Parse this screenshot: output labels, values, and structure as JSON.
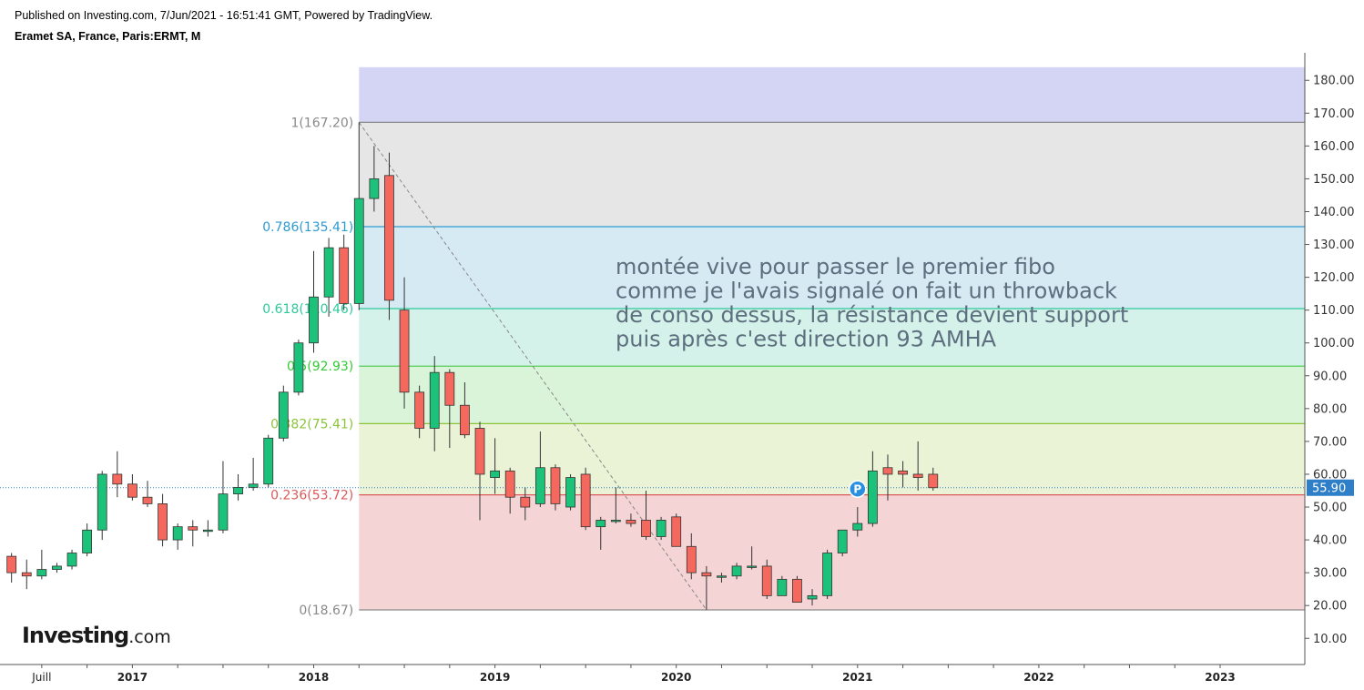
{
  "header": {
    "line1": "Published on Investing.com, 7/Jun/2021 - 16:51:41 GMT, Powered by TradingView.",
    "line2": "Eramet SA, France, Paris:ERMT, M"
  },
  "logo": {
    "brand": "Investing",
    "suffix": ".com"
  },
  "chart_data": {
    "type": "candlestick",
    "title": "Eramet SA, France, Paris:ERMT, M",
    "ylim": [
      2,
      190
    ],
    "y_ticks": [
      "10.00",
      "20.00",
      "30.00",
      "40.00",
      "50.00",
      "60.00",
      "70.00",
      "80.00",
      "90.00",
      "100.00",
      "110.00",
      "120.00",
      "130.00",
      "140.00",
      "150.00",
      "160.00",
      "170.00",
      "180.00"
    ],
    "x_labels": [
      {
        "label": "Juill",
        "date": "2016-07"
      },
      {
        "label": "2017",
        "date": "2017-01"
      },
      {
        "label": "2018",
        "date": "2018-01"
      },
      {
        "label": "2019",
        "date": "2019-01"
      },
      {
        "label": "2020",
        "date": "2020-01"
      },
      {
        "label": "2021",
        "date": "2021-01"
      },
      {
        "label": "2022",
        "date": "2022-01"
      },
      {
        "label": "2023",
        "date": "2023-01"
      }
    ],
    "last_price": "55.90",
    "fib_levels": [
      {
        "label": "1(167.20)",
        "value": 167.2,
        "text_color": "#8a8a8a",
        "line_color": "#8a8a8a"
      },
      {
        "label": "0.786(135.41)",
        "value": 135.41,
        "text_color": "#2d9ad0",
        "line_color": "#2d9ad0"
      },
      {
        "label": "0.618(110.46)",
        "value": 110.46,
        "text_color": "#2ec99a",
        "line_color": "#2ec99a"
      },
      {
        "label": "0.5(92.93)",
        "value": 92.93,
        "text_color": "#33cc33",
        "line_color": "#55cc55"
      },
      {
        "label": "0.382(75.41)",
        "value": 75.41,
        "text_color": "#8cc43a",
        "line_color": "#8cc43a"
      },
      {
        "label": "0.236(53.72)",
        "value": 53.72,
        "text_color": "#dc5a5a",
        "line_color": "#dc5a5a"
      },
      {
        "label": "0(18.67)",
        "value": 18.67,
        "text_color": "#8a8a8a",
        "line_color": "#8a8a8a"
      }
    ],
    "fib_zones": [
      {
        "from": 167.2,
        "to": 184,
        "color": "#d4d4f4"
      },
      {
        "from": 135.41,
        "to": 167.2,
        "color": "#e6e6e6"
      },
      {
        "from": 110.46,
        "to": 135.41,
        "color": "#d6eaf4"
      },
      {
        "from": 92.93,
        "to": 110.46,
        "color": "#d4f2ea"
      },
      {
        "from": 75.41,
        "to": 92.93,
        "color": "#d9f4d8"
      },
      {
        "from": 53.72,
        "to": 75.41,
        "color": "#eaf3d6"
      },
      {
        "from": 18.67,
        "to": 53.72,
        "color": "#f4d4d4"
      }
    ],
    "trend_line": {
      "from": {
        "date": "2018-04",
        "price": 167.2
      },
      "to": {
        "date": "2020-03",
        "price": 18.67
      }
    },
    "annotation": [
      "montée vive pour passer le premier fibo",
      "comme je l'avais signalé on fait un throwback",
      "de conso dessus, la résistance devient support",
      "puis après c'est direction 93 AMHA"
    ],
    "marker": {
      "label": "P",
      "date": "2021-01",
      "price": 55.5
    },
    "candles": [
      {
        "date": "2016-05",
        "o": 35,
        "h": 36,
        "l": 27,
        "c": 30
      },
      {
        "date": "2016-06",
        "o": 30,
        "h": 34,
        "l": 25,
        "c": 29
      },
      {
        "date": "2016-07",
        "o": 29,
        "h": 37,
        "l": 28,
        "c": 31
      },
      {
        "date": "2016-08",
        "o": 31,
        "h": 33,
        "l": 30,
        "c": 32
      },
      {
        "date": "2016-09",
        "o": 32,
        "h": 37,
        "l": 31,
        "c": 36
      },
      {
        "date": "2016-10",
        "o": 36,
        "h": 45,
        "l": 35,
        "c": 43
      },
      {
        "date": "2016-11",
        "o": 43,
        "h": 61,
        "l": 40,
        "c": 60
      },
      {
        "date": "2016-12",
        "o": 60,
        "h": 67,
        "l": 53,
        "c": 57
      },
      {
        "date": "2017-01",
        "o": 57,
        "h": 60,
        "l": 52,
        "c": 53
      },
      {
        "date": "2017-02",
        "o": 53,
        "h": 58,
        "l": 50,
        "c": 51
      },
      {
        "date": "2017-03",
        "o": 51,
        "h": 54,
        "l": 38,
        "c": 40
      },
      {
        "date": "2017-04",
        "o": 40,
        "h": 45,
        "l": 37,
        "c": 44
      },
      {
        "date": "2017-05",
        "o": 44,
        "h": 46,
        "l": 38,
        "c": 43
      },
      {
        "date": "2017-06",
        "o": 43,
        "h": 46,
        "l": 41,
        "c": 43
      },
      {
        "date": "2017-07",
        "o": 43,
        "h": 64,
        "l": 42,
        "c": 54
      },
      {
        "date": "2017-08",
        "o": 54,
        "h": 60,
        "l": 52,
        "c": 56
      },
      {
        "date": "2017-09",
        "o": 56,
        "h": 65,
        "l": 55,
        "c": 57
      },
      {
        "date": "2017-10",
        "o": 57,
        "h": 72,
        "l": 56,
        "c": 71
      },
      {
        "date": "2017-11",
        "o": 71,
        "h": 87,
        "l": 70,
        "c": 85
      },
      {
        "date": "2017-12",
        "o": 85,
        "h": 101,
        "l": 84,
        "c": 100
      },
      {
        "date": "2018-01",
        "o": 100,
        "h": 128,
        "l": 97,
        "c": 114
      },
      {
        "date": "2018-02",
        "o": 114,
        "h": 132,
        "l": 108,
        "c": 129
      },
      {
        "date": "2018-03",
        "o": 129,
        "h": 133,
        "l": 110,
        "c": 112
      },
      {
        "date": "2018-04",
        "o": 112,
        "h": 167.2,
        "l": 110,
        "c": 144
      },
      {
        "date": "2018-05",
        "o": 144,
        "h": 160,
        "l": 140,
        "c": 150
      },
      {
        "date": "2018-06",
        "o": 151,
        "h": 158,
        "l": 107,
        "c": 113
      },
      {
        "date": "2018-07",
        "o": 110,
        "h": 120,
        "l": 80,
        "c": 85
      },
      {
        "date": "2018-08",
        "o": 85,
        "h": 87,
        "l": 71,
        "c": 74
      },
      {
        "date": "2018-09",
        "o": 74,
        "h": 96,
        "l": 67,
        "c": 91
      },
      {
        "date": "2018-10",
        "o": 91,
        "h": 92,
        "l": 68,
        "c": 81
      },
      {
        "date": "2018-11",
        "o": 81,
        "h": 88,
        "l": 71,
        "c": 72
      },
      {
        "date": "2018-12",
        "o": 74,
        "h": 76,
        "l": 46,
        "c": 60
      },
      {
        "date": "2019-01",
        "o": 59,
        "h": 71,
        "l": 54,
        "c": 61
      },
      {
        "date": "2019-02",
        "o": 61,
        "h": 62,
        "l": 48,
        "c": 53
      },
      {
        "date": "2019-03",
        "o": 53,
        "h": 56,
        "l": 46,
        "c": 50
      },
      {
        "date": "2019-04",
        "o": 51,
        "h": 73,
        "l": 50,
        "c": 62
      },
      {
        "date": "2019-05",
        "o": 62,
        "h": 63,
        "l": 49,
        "c": 51
      },
      {
        "date": "2019-06",
        "o": 50,
        "h": 60,
        "l": 49,
        "c": 59
      },
      {
        "date": "2019-07",
        "o": 60,
        "h": 62,
        "l": 43,
        "c": 44
      },
      {
        "date": "2019-08",
        "o": 44,
        "h": 47,
        "l": 37,
        "c": 46
      },
      {
        "date": "2019-09",
        "o": 46,
        "h": 56,
        "l": 45,
        "c": 46
      },
      {
        "date": "2019-10",
        "o": 46,
        "h": 48,
        "l": 44,
        "c": 45
      },
      {
        "date": "2019-11",
        "o": 46,
        "h": 55,
        "l": 40,
        "c": 41
      },
      {
        "date": "2019-12",
        "o": 41,
        "h": 47,
        "l": 40,
        "c": 46
      },
      {
        "date": "2020-01",
        "o": 47,
        "h": 48,
        "l": 38,
        "c": 38
      },
      {
        "date": "2020-02",
        "o": 38,
        "h": 42,
        "l": 28,
        "c": 30
      },
      {
        "date": "2020-03",
        "o": 30,
        "h": 32,
        "l": 18.67,
        "c": 29
      },
      {
        "date": "2020-04",
        "o": 29,
        "h": 30,
        "l": 27,
        "c": 29
      },
      {
        "date": "2020-05",
        "o": 29,
        "h": 33,
        "l": 28,
        "c": 32
      },
      {
        "date": "2020-06",
        "o": 32,
        "h": 38,
        "l": 31,
        "c": 32
      },
      {
        "date": "2020-07",
        "o": 32,
        "h": 34,
        "l": 22,
        "c": 23
      },
      {
        "date": "2020-08",
        "o": 23,
        "h": 29,
        "l": 23,
        "c": 28
      },
      {
        "date": "2020-09",
        "o": 28,
        "h": 29,
        "l": 21,
        "c": 21
      },
      {
        "date": "2020-10",
        "o": 22,
        "h": 25,
        "l": 20,
        "c": 23
      },
      {
        "date": "2020-11",
        "o": 23,
        "h": 37,
        "l": 22,
        "c": 36
      },
      {
        "date": "2020-12",
        "o": 36,
        "h": 43,
        "l": 35,
        "c": 43
      },
      {
        "date": "2021-01",
        "o": 43,
        "h": 50,
        "l": 41,
        "c": 45
      },
      {
        "date": "2021-02",
        "o": 45,
        "h": 67,
        "l": 44,
        "c": 61
      },
      {
        "date": "2021-03",
        "o": 62,
        "h": 66,
        "l": 52,
        "c": 60
      },
      {
        "date": "2021-04",
        "o": 61,
        "h": 64,
        "l": 56,
        "c": 60
      },
      {
        "date": "2021-05",
        "o": 60,
        "h": 70,
        "l": 55,
        "c": 59
      },
      {
        "date": "2021-06",
        "o": 60,
        "h": 62,
        "l": 55,
        "c": 55.9
      }
    ]
  }
}
